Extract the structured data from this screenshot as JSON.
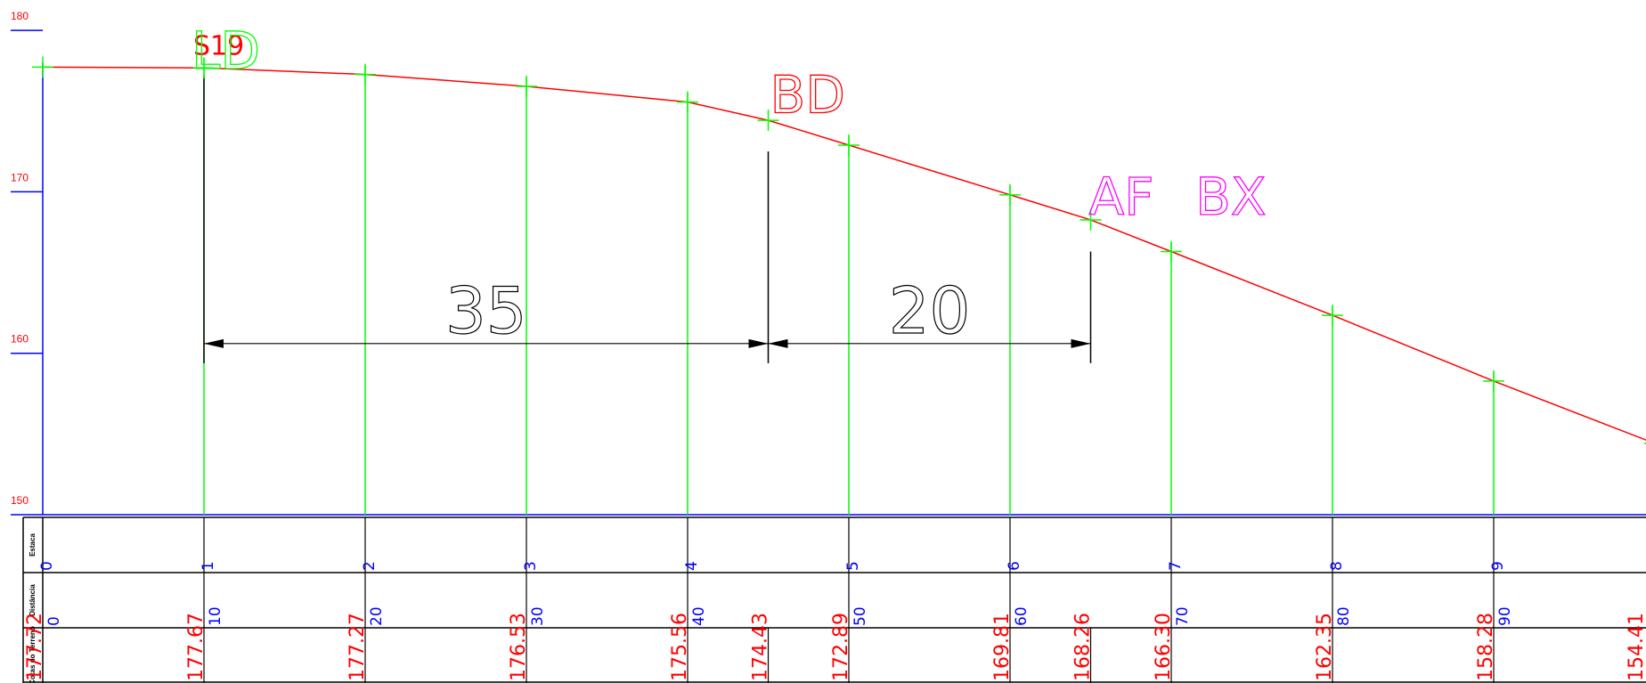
{
  "chart_data": {
    "type": "line",
    "title": "",
    "xlabel": "",
    "ylabel": "",
    "xlim": [
      0,
      100
    ],
    "ylim": [
      150,
      180
    ],
    "y_ticks": [
      150,
      160,
      170,
      180
    ],
    "y_tick_labels": [
      "150",
      "160",
      "170",
      "180"
    ],
    "grid": false,
    "legend": "none",
    "series": [
      {
        "values": [
          {
            "x": 0,
            "y": 177.72
          },
          {
            "x": 10,
            "y": 177.67
          },
          {
            "x": 20,
            "y": 177.27
          },
          {
            "x": 30,
            "y": 176.53
          },
          {
            "x": 40,
            "y": 175.56
          },
          {
            "x": 45,
            "y": 174.43
          },
          {
            "x": 50,
            "y": 172.89
          },
          {
            "x": 60,
            "y": 169.81
          },
          {
            "x": 65,
            "y": 168.26
          },
          {
            "x": 70,
            "y": 166.3
          },
          {
            "x": 80,
            "y": 162.35
          },
          {
            "x": 90,
            "y": 158.28
          },
          {
            "x": 100,
            "y": 154.41
          }
        ]
      }
    ],
    "station_lines": [
      10,
      20,
      30,
      40,
      50,
      60,
      70,
      80,
      90
    ],
    "point_labels": [
      {
        "x": 10,
        "text": "S19",
        "color": "#ff0000"
      },
      {
        "x": 10,
        "text": "LD",
        "color": "#00ff00"
      },
      {
        "x": 45,
        "text": "BD",
        "color": "#ff0000"
      },
      {
        "x": 65,
        "text": "AF",
        "color": "#ff00ff"
      },
      {
        "x": 65,
        "text": "BX",
        "color": "#ff00ff"
      }
    ],
    "dimensions": [
      {
        "from": 10,
        "to": 45,
        "text": "35"
      },
      {
        "from": 45,
        "to": 65,
        "text": "20"
      }
    ]
  },
  "table": {
    "row_labels": [
      "Estaca",
      "Distância",
      "Cotas do Terreno"
    ],
    "estacas": [
      {
        "x": 0,
        "text": "0"
      },
      {
        "x": 10,
        "text": "1"
      },
      {
        "x": 20,
        "text": "2"
      },
      {
        "x": 30,
        "text": "3"
      },
      {
        "x": 40,
        "text": "4"
      },
      {
        "x": 50,
        "text": "5"
      },
      {
        "x": 60,
        "text": "6"
      },
      {
        "x": 70,
        "text": "7"
      },
      {
        "x": 80,
        "text": "8"
      },
      {
        "x": 90,
        "text": "9"
      }
    ],
    "distances": [
      {
        "x": 0,
        "text": "0"
      },
      {
        "x": 10,
        "text": "10"
      },
      {
        "x": 20,
        "text": "20"
      },
      {
        "x": 30,
        "text": "30"
      },
      {
        "x": 40,
        "text": "40"
      },
      {
        "x": 50,
        "text": "50"
      },
      {
        "x": 60,
        "text": "60"
      },
      {
        "x": 70,
        "text": "70"
      },
      {
        "x": 80,
        "text": "80"
      },
      {
        "x": 90,
        "text": "90"
      }
    ],
    "cotas": [
      {
        "x": 0,
        "text": "177.72"
      },
      {
        "x": 10,
        "text": "177.67"
      },
      {
        "x": 20,
        "text": "177.27"
      },
      {
        "x": 30,
        "text": "176.53"
      },
      {
        "x": 40,
        "text": "175.56"
      },
      {
        "x": 45,
        "text": "174.43"
      },
      {
        "x": 50,
        "text": "172.89"
      },
      {
        "x": 60,
        "text": "169.81"
      },
      {
        "x": 65,
        "text": "168.26"
      },
      {
        "x": 70,
        "text": "166.30"
      },
      {
        "x": 80,
        "text": "162.35"
      },
      {
        "x": 90,
        "text": "158.28"
      },
      {
        "x": 100,
        "text": "154.41"
      }
    ]
  },
  "colors": {
    "axis": "#0000ff",
    "axis_labels": "#ff0000",
    "terrain_line": "#ff0000",
    "station_lines": "#00ff00",
    "dimension": "#000000",
    "table_lines": "#000000",
    "estaca_text": "#0000ff",
    "distance_text": "#0000ff",
    "cota_text": "#ff0000",
    "magenta": "#ff00ff"
  }
}
